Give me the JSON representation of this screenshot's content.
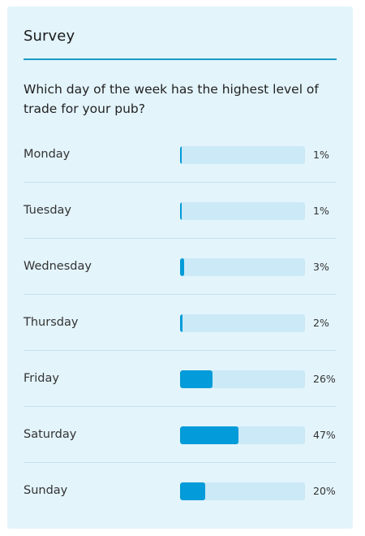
{
  "survey": {
    "title": "Survey",
    "question": "Which day of the week has the highest level of trade for your pub?",
    "accent_color": "#1b9bc6",
    "bar_color": "#039bd9",
    "track_color": "#cbe9f6",
    "options": [
      {
        "label": "Monday",
        "percent": 1,
        "percent_label": "1%"
      },
      {
        "label": "Tuesday",
        "percent": 1,
        "percent_label": "1%"
      },
      {
        "label": "Wednesday",
        "percent": 3,
        "percent_label": "3%"
      },
      {
        "label": "Thursday",
        "percent": 2,
        "percent_label": "2%"
      },
      {
        "label": "Friday",
        "percent": 26,
        "percent_label": "26%"
      },
      {
        "label": "Saturday",
        "percent": 47,
        "percent_label": "47%"
      },
      {
        "label": "Sunday",
        "percent": 20,
        "percent_label": "20%"
      }
    ]
  }
}
